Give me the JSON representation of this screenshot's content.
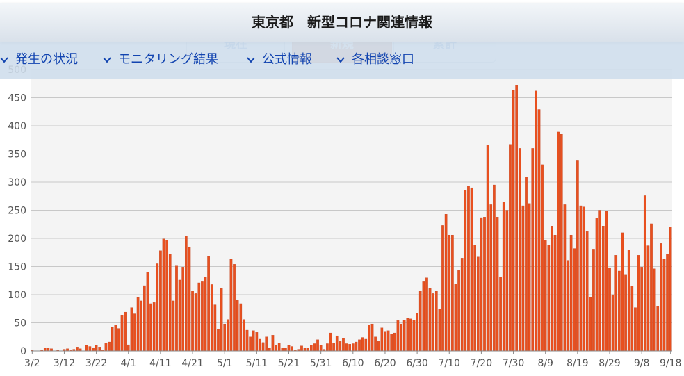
{
  "header": {
    "title": "東京都　新型コロナ関連情報"
  },
  "ghost_tabs": [
    {
      "label": "現在"
    },
    {
      "label": "新規"
    },
    {
      "label": "累計"
    }
  ],
  "nav": {
    "items": [
      {
        "label": "発生の状況",
        "icon": "chevron-down-icon"
      },
      {
        "label": "モニタリング結果",
        "icon": "chevron-down-icon"
      },
      {
        "label": "公式情報",
        "icon": "chevron-down-icon"
      },
      {
        "label": "各相談窓口",
        "icon": "chevron-down-icon"
      }
    ]
  },
  "colors": {
    "bar": "#e8501f",
    "bar_edge": "#b83410",
    "grid": "#c8c8c8",
    "plot_bg": "#f4f4f4",
    "nav_text": "#1244b0",
    "tick_text": "#555555"
  },
  "chart_data": {
    "type": "bar",
    "title": "",
    "xlabel": "",
    "ylabel": "",
    "ylim": [
      0,
      500
    ],
    "yticks": [
      0,
      50,
      100,
      150,
      200,
      250,
      300,
      350,
      400,
      450,
      500
    ],
    "grid": true,
    "legend": "none",
    "x_tick_labels": [
      "3/2",
      "3/12",
      "3/22",
      "4/1",
      "4/11",
      "4/21",
      "5/1",
      "5/11",
      "5/21",
      "5/31",
      "6/10",
      "6/20",
      "6/30",
      "7/10",
      "7/20",
      "7/30",
      "8/9",
      "8/19",
      "8/29",
      "9/8",
      "9/18"
    ],
    "series": [
      {
        "values": [
          1,
          0,
          0,
          2,
          5,
          5,
          4,
          0,
          1,
          0,
          3,
          4,
          2,
          3,
          7,
          4,
          0,
          10,
          8,
          6,
          10,
          7,
          2,
          14,
          16,
          42,
          46,
          40,
          64,
          69,
          11,
          77,
          66,
          95,
          89,
          116,
          140,
          84,
          86,
          155,
          178,
          199,
          197,
          172,
          89,
          151,
          126,
          149,
          204,
          184,
          107,
          102,
          121,
          123,
          131,
          168,
          118,
          82,
          39,
          111,
          48,
          56,
          163,
          154,
          90,
          84,
          56,
          37,
          25,
          36,
          33,
          21,
          15,
          25,
          5,
          28,
          10,
          14,
          6,
          5,
          10,
          8,
          2,
          3,
          9,
          5,
          5,
          10,
          13,
          20,
          10,
          3,
          13,
          32,
          14,
          27,
          17,
          23,
          13,
          12,
          13,
          16,
          20,
          24,
          21,
          46,
          48,
          25,
          17,
          41,
          35,
          36,
          30,
          32,
          54,
          48,
          55,
          58,
          57,
          55,
          67,
          106,
          123,
          130,
          111,
          102,
          106,
          75,
          223,
          243,
          206,
          206,
          119,
          143,
          165,
          286,
          293,
          290,
          188,
          167,
          237,
          238,
          366,
          260,
          295,
          238,
          131,
          265,
          250,
          367,
          463,
          472,
          360,
          258,
          309,
          262,
          360,
          462,
          429,
          331,
          197,
          188,
          222,
          206,
          389,
          385,
          260,
          161,
          206,
          182,
          339,
          258,
          256,
          212,
          95,
          181,
          236,
          250,
          222,
          248,
          148,
          100,
          170,
          142,
          210,
          136,
          180,
          115,
          77,
          170,
          149,
          276,
          187,
          226,
          146,
          80,
          191,
          163,
          172,
          220
        ]
      }
    ]
  }
}
